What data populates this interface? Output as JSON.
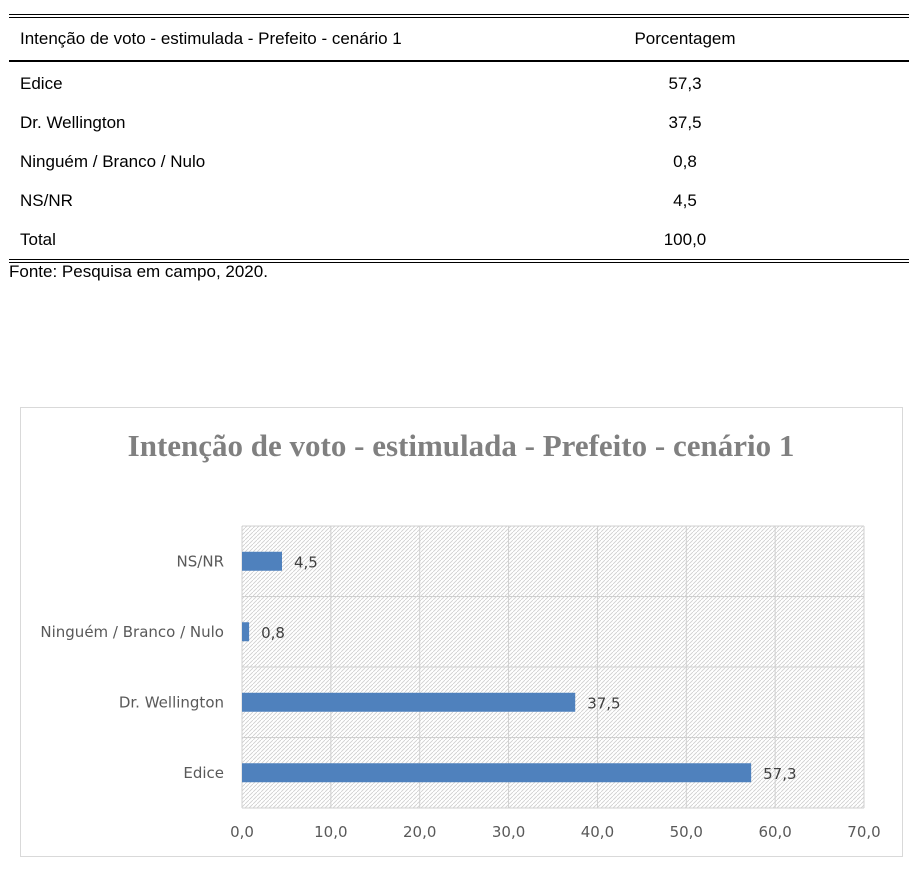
{
  "table": {
    "header": {
      "category": "Intenção de voto - estimulada - Prefeito - cenário 1",
      "value": "Porcentagem"
    },
    "rows": [
      {
        "label": "Edice",
        "value": "57,3"
      },
      {
        "label": "Dr. Wellington",
        "value": "37,5"
      },
      {
        "label": "Ninguém / Branco / Nulo",
        "value": "0,8"
      },
      {
        "label": "NS/NR",
        "value": "4,5"
      },
      {
        "label": "Total",
        "value": "100,0"
      }
    ],
    "source": "Fonte: Pesquisa em campo, 2020."
  },
  "chart_data": {
    "type": "bar",
    "orientation": "horizontal",
    "title": "Intenção de voto - estimulada - Prefeito - cenário 1",
    "categories": [
      "NS/NR",
      "Ninguém / Branco / Nulo",
      "Dr. Wellington",
      "Edice"
    ],
    "values": [
      4.5,
      0.8,
      37.5,
      57.3
    ],
    "value_labels": [
      "4,5",
      "0,8",
      "37,5",
      "57,3"
    ],
    "xlim": [
      0,
      70
    ],
    "x_ticks": [
      "0,0",
      "10,0",
      "20,0",
      "30,0",
      "40,0",
      "50,0",
      "60,0",
      "70,0"
    ],
    "grid": true,
    "bar_color": "#4f81bd",
    "xlabel": "",
    "ylabel": ""
  }
}
